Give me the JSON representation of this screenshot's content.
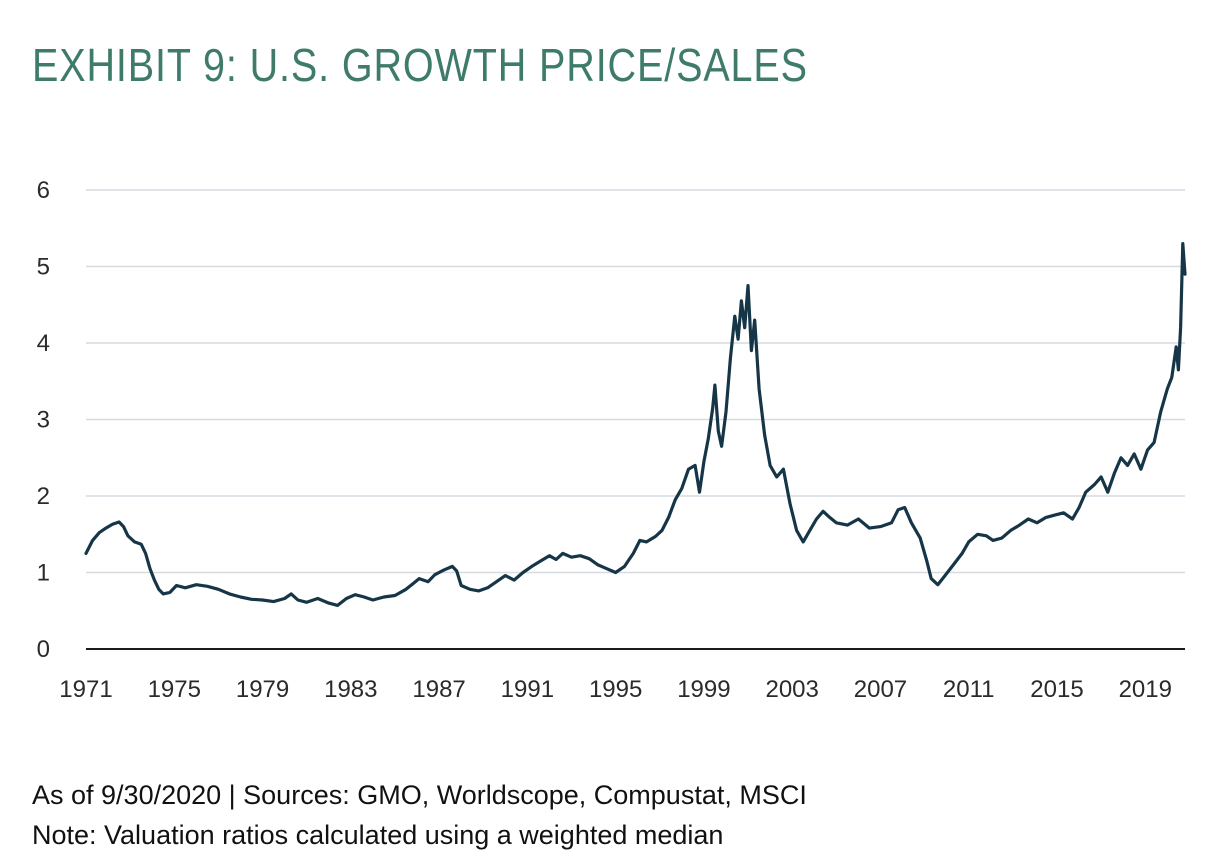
{
  "title": "EXHIBIT 9: U.S. GROWTH PRICE/SALES",
  "footer": {
    "sources": "As of 9/30/2020 | Sources: GMO, Worldscope, Compustat, MSCI",
    "note": "Note: Valuation ratios calculated using a weighted median"
  },
  "colors": {
    "title": "#3e7b6a",
    "line": "#163648",
    "grid": "#d6dbe0",
    "axis": "#1b1b1b"
  },
  "chart_data": {
    "type": "line",
    "title": "EXHIBIT 9: U.S. GROWTH PRICE/SALES",
    "xlabel": "",
    "ylabel": "",
    "xlim": [
      1971,
      2020.8
    ],
    "ylim": [
      0,
      6
    ],
    "x_ticks": [
      1971,
      1975,
      1979,
      1983,
      1987,
      1991,
      1995,
      1999,
      2003,
      2007,
      2011,
      2015,
      2019
    ],
    "y_ticks": [
      0,
      1,
      2,
      3,
      4,
      5,
      6
    ],
    "grid": "horizontal",
    "legend": "none",
    "series": [
      {
        "name": "",
        "points": [
          [
            1971.0,
            1.25
          ],
          [
            1971.3,
            1.42
          ],
          [
            1971.6,
            1.52
          ],
          [
            1971.9,
            1.58
          ],
          [
            1972.2,
            1.63
          ],
          [
            1972.5,
            1.66
          ],
          [
            1972.7,
            1.6
          ],
          [
            1972.9,
            1.48
          ],
          [
            1973.2,
            1.4
          ],
          [
            1973.5,
            1.37
          ],
          [
            1973.7,
            1.25
          ],
          [
            1973.9,
            1.05
          ],
          [
            1974.1,
            0.9
          ],
          [
            1974.3,
            0.78
          ],
          [
            1974.5,
            0.72
          ],
          [
            1974.8,
            0.74
          ],
          [
            1975.1,
            0.83
          ],
          [
            1975.5,
            0.8
          ],
          [
            1976.0,
            0.84
          ],
          [
            1976.5,
            0.82
          ],
          [
            1977.0,
            0.78
          ],
          [
            1977.5,
            0.72
          ],
          [
            1978.0,
            0.68
          ],
          [
            1978.5,
            0.65
          ],
          [
            1979.0,
            0.64
          ],
          [
            1979.5,
            0.62
          ],
          [
            1980.0,
            0.66
          ],
          [
            1980.3,
            0.72
          ],
          [
            1980.6,
            0.64
          ],
          [
            1981.0,
            0.61
          ],
          [
            1981.5,
            0.66
          ],
          [
            1982.0,
            0.6
          ],
          [
            1982.4,
            0.57
          ],
          [
            1982.8,
            0.66
          ],
          [
            1983.2,
            0.71
          ],
          [
            1983.6,
            0.68
          ],
          [
            1984.0,
            0.64
          ],
          [
            1984.5,
            0.68
          ],
          [
            1985.0,
            0.7
          ],
          [
            1985.5,
            0.78
          ],
          [
            1985.8,
            0.85
          ],
          [
            1986.1,
            0.92
          ],
          [
            1986.5,
            0.88
          ],
          [
            1986.8,
            0.97
          ],
          [
            1987.2,
            1.03
          ],
          [
            1987.6,
            1.08
          ],
          [
            1987.8,
            1.02
          ],
          [
            1988.0,
            0.83
          ],
          [
            1988.4,
            0.78
          ],
          [
            1988.8,
            0.76
          ],
          [
            1989.2,
            0.8
          ],
          [
            1989.6,
            0.88
          ],
          [
            1990.0,
            0.96
          ],
          [
            1990.4,
            0.9
          ],
          [
            1990.8,
            1.0
          ],
          [
            1991.2,
            1.08
          ],
          [
            1991.6,
            1.15
          ],
          [
            1992.0,
            1.22
          ],
          [
            1992.3,
            1.17
          ],
          [
            1992.6,
            1.25
          ],
          [
            1993.0,
            1.2
          ],
          [
            1993.4,
            1.22
          ],
          [
            1993.8,
            1.18
          ],
          [
            1994.2,
            1.1
          ],
          [
            1994.6,
            1.05
          ],
          [
            1995.0,
            1.0
          ],
          [
            1995.4,
            1.08
          ],
          [
            1995.8,
            1.25
          ],
          [
            1996.1,
            1.42
          ],
          [
            1996.4,
            1.4
          ],
          [
            1996.8,
            1.47
          ],
          [
            1997.1,
            1.55
          ],
          [
            1997.4,
            1.72
          ],
          [
            1997.7,
            1.95
          ],
          [
            1998.0,
            2.1
          ],
          [
            1998.3,
            2.35
          ],
          [
            1998.6,
            2.4
          ],
          [
            1998.8,
            2.05
          ],
          [
            1999.0,
            2.45
          ],
          [
            1999.2,
            2.75
          ],
          [
            1999.4,
            3.15
          ],
          [
            1999.5,
            3.45
          ],
          [
            1999.65,
            2.85
          ],
          [
            1999.8,
            2.65
          ],
          [
            2000.0,
            3.1
          ],
          [
            2000.2,
            3.8
          ],
          [
            2000.4,
            4.35
          ],
          [
            2000.55,
            4.05
          ],
          [
            2000.7,
            4.55
          ],
          [
            2000.85,
            4.2
          ],
          [
            2001.0,
            4.75
          ],
          [
            2001.15,
            3.9
          ],
          [
            2001.3,
            4.3
          ],
          [
            2001.5,
            3.4
          ],
          [
            2001.75,
            2.8
          ],
          [
            2002.0,
            2.4
          ],
          [
            2002.3,
            2.25
          ],
          [
            2002.6,
            2.35
          ],
          [
            2002.9,
            1.9
          ],
          [
            2003.2,
            1.55
          ],
          [
            2003.5,
            1.4
          ],
          [
            2003.8,
            1.55
          ],
          [
            2004.1,
            1.7
          ],
          [
            2004.4,
            1.8
          ],
          [
            2004.7,
            1.72
          ],
          [
            2005.0,
            1.65
          ],
          [
            2005.5,
            1.62
          ],
          [
            2006.0,
            1.7
          ],
          [
            2006.5,
            1.58
          ],
          [
            2007.0,
            1.6
          ],
          [
            2007.5,
            1.65
          ],
          [
            2007.8,
            1.82
          ],
          [
            2008.1,
            1.85
          ],
          [
            2008.4,
            1.65
          ],
          [
            2008.8,
            1.45
          ],
          [
            2009.1,
            1.15
          ],
          [
            2009.3,
            0.92
          ],
          [
            2009.6,
            0.84
          ],
          [
            2009.9,
            0.95
          ],
          [
            2010.3,
            1.1
          ],
          [
            2010.7,
            1.25
          ],
          [
            2011.0,
            1.4
          ],
          [
            2011.4,
            1.5
          ],
          [
            2011.8,
            1.48
          ],
          [
            2012.1,
            1.42
          ],
          [
            2012.5,
            1.45
          ],
          [
            2012.9,
            1.55
          ],
          [
            2013.3,
            1.62
          ],
          [
            2013.7,
            1.7
          ],
          [
            2014.1,
            1.65
          ],
          [
            2014.5,
            1.72
          ],
          [
            2014.9,
            1.75
          ],
          [
            2015.3,
            1.78
          ],
          [
            2015.7,
            1.7
          ],
          [
            2016.0,
            1.85
          ],
          [
            2016.3,
            2.05
          ],
          [
            2016.7,
            2.15
          ],
          [
            2017.0,
            2.25
          ],
          [
            2017.3,
            2.05
          ],
          [
            2017.6,
            2.3
          ],
          [
            2017.9,
            2.5
          ],
          [
            2018.2,
            2.4
          ],
          [
            2018.5,
            2.55
          ],
          [
            2018.8,
            2.35
          ],
          [
            2019.1,
            2.6
          ],
          [
            2019.4,
            2.7
          ],
          [
            2019.7,
            3.1
          ],
          [
            2020.0,
            3.4
          ],
          [
            2020.2,
            3.55
          ],
          [
            2020.4,
            3.95
          ],
          [
            2020.5,
            3.65
          ],
          [
            2020.6,
            4.2
          ],
          [
            2020.7,
            5.3
          ],
          [
            2020.8,
            4.9
          ]
        ]
      }
    ]
  }
}
